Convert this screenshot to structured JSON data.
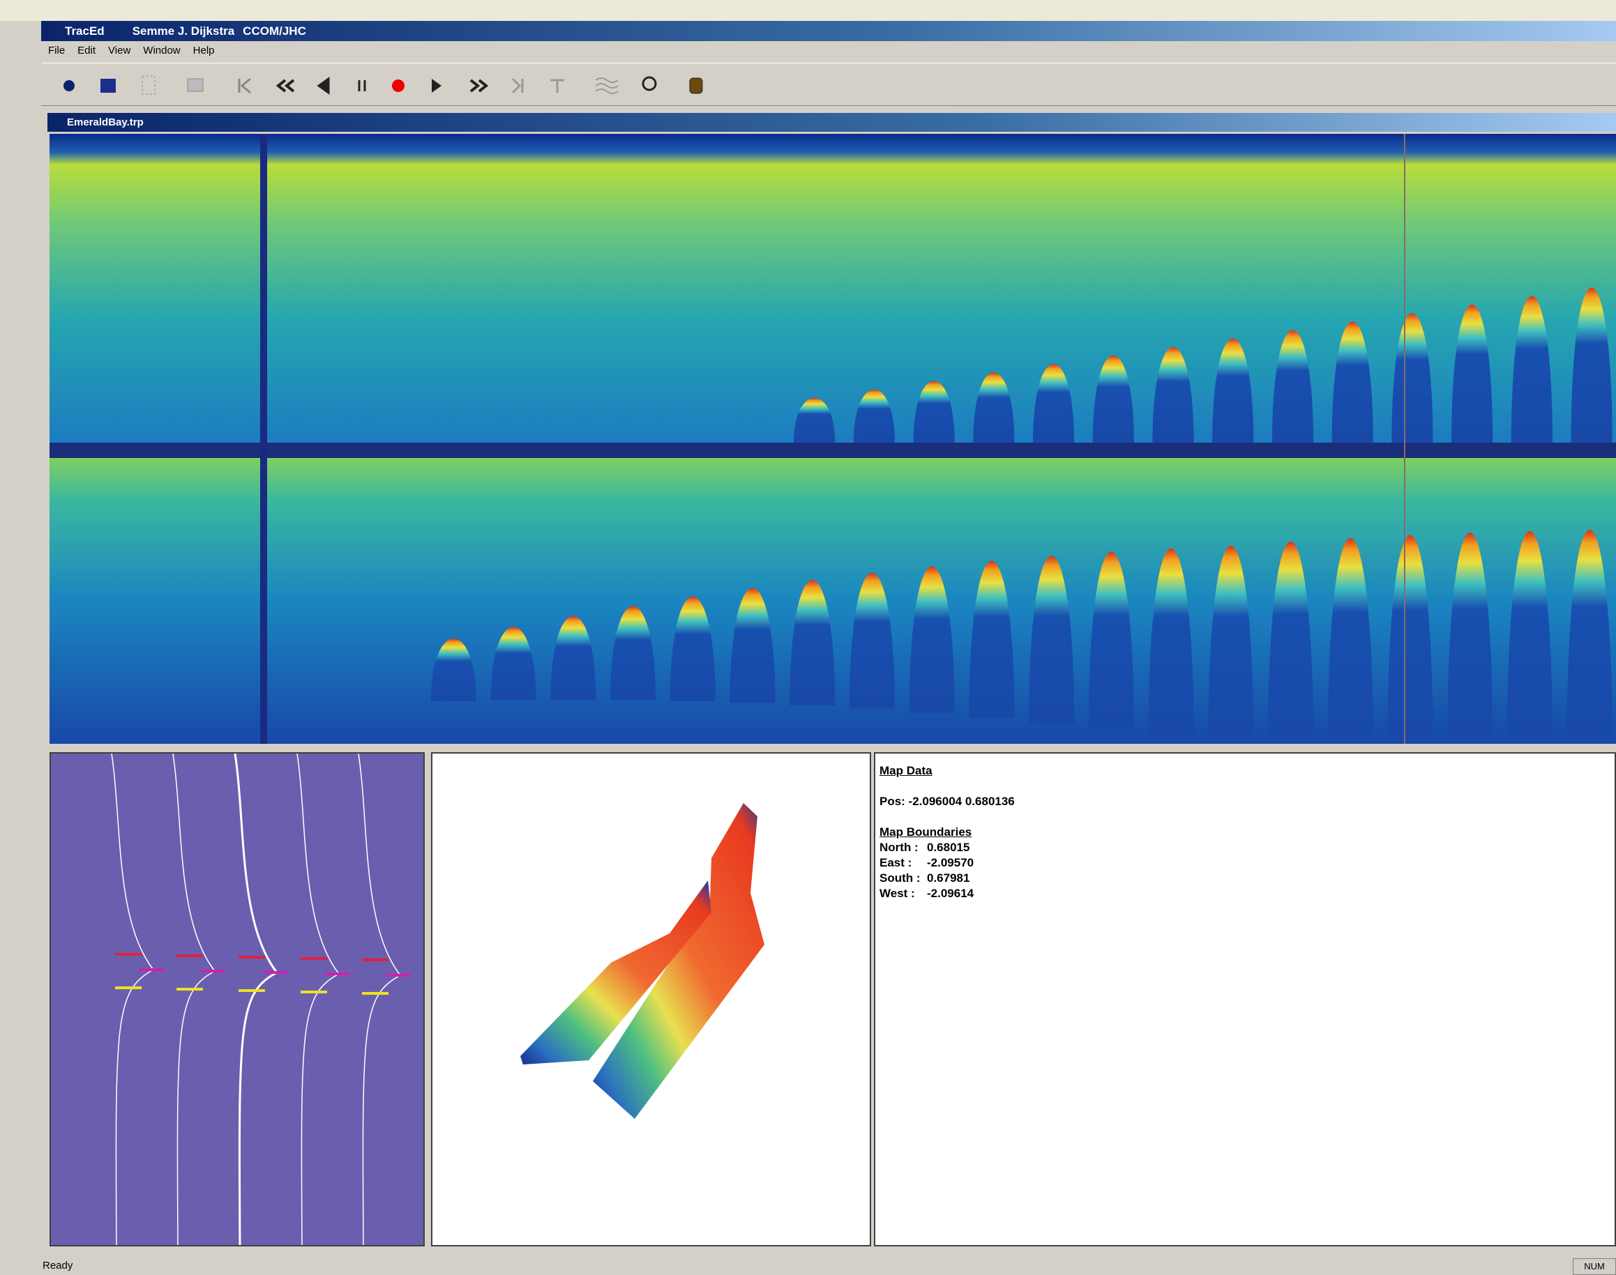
{
  "title_bar": {
    "app": "TracEd",
    "user": "Semme J. Dijkstra",
    "org": "CCOM/JHC"
  },
  "menu": [
    "File",
    "Edit",
    "View",
    "Window",
    "Help"
  ],
  "document": {
    "title": "EmeraldBay.trp"
  },
  "map_info": {
    "heading": "Map Data",
    "position": "Pos: -2.096004 0.680136",
    "boundaries": {
      "heading": "Map Boundaries",
      "rows": [
        {
          "label": "North :",
          "value": "0.68015"
        },
        {
          "label": "East :",
          "value": "-2.09570"
        },
        {
          "label": "South :",
          "value": "0.67981"
        },
        {
          "label": "West :",
          "value": "-2.09614"
        }
      ]
    }
  },
  "status_bar": {
    "message": "Ready",
    "indicator": "NUM"
  }
}
